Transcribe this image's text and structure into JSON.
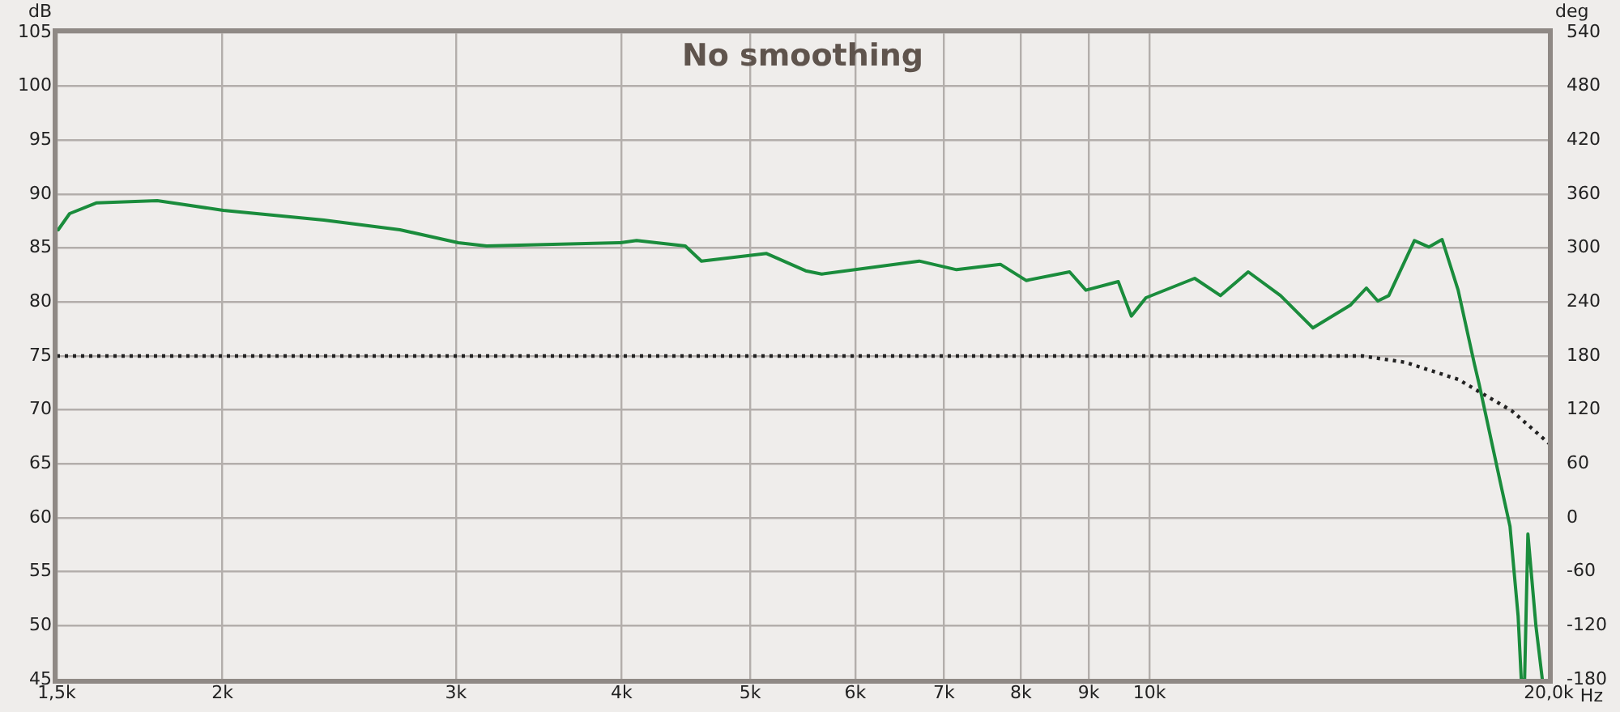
{
  "chart_data": {
    "type": "line",
    "title": "No smoothing",
    "xlabel": "Hz",
    "ylabel": "dB",
    "y2label": "deg",
    "log": "x",
    "grid": true,
    "marker": "none",
    "xlim": [
      1500,
      20000
    ],
    "xticks": [
      {
        "value": 1500,
        "label": "1,5k"
      },
      {
        "value": 2000,
        "label": "2k"
      },
      {
        "value": 3000,
        "label": "3k"
      },
      {
        "value": 4000,
        "label": "4k"
      },
      {
        "value": 5000,
        "label": "5k"
      },
      {
        "value": 6000,
        "label": "6k"
      },
      {
        "value": 7000,
        "label": "7k"
      },
      {
        "value": 8000,
        "label": "8k"
      },
      {
        "value": 9000,
        "label": "9k"
      },
      {
        "value": 10000,
        "label": "10k"
      },
      {
        "value": 20000,
        "label": "20,0k"
      }
    ],
    "ylim": [
      45,
      105
    ],
    "yticks": [
      45,
      50,
      55,
      60,
      65,
      70,
      75,
      80,
      85,
      90,
      95,
      100,
      105
    ],
    "y2lim": [
      -180,
      540
    ],
    "y2ticks": [
      -180,
      -120,
      -60,
      0,
      60,
      120,
      180,
      240,
      300,
      360,
      420,
      480,
      540
    ],
    "series": [
      {
        "color": "#1a8c3c",
        "line_style": "solid",
        "x": [
          1504,
          1534,
          1608,
          1786,
          2003,
          2385,
          2722,
          3012,
          3164,
          3992,
          4105,
          4467,
          4594,
          5144,
          5505,
          5661,
          6705,
          7154,
          7719,
          8073,
          8705,
          8955,
          9473,
          9690,
          9939,
          10515,
          10816,
          11313,
          11870,
          12556,
          13282,
          14170,
          14573,
          14864,
          15150,
          15840,
          16246,
          16620,
          17090,
          17576,
          17724,
          18440,
          18700,
          18965,
          19070,
          19180,
          19290,
          19560,
          19780
        ],
        "values": [
          86.7,
          88.2,
          89.2,
          89.4,
          88.5,
          87.6,
          86.7,
          85.5,
          85.2,
          85.5,
          85.7,
          85.2,
          83.8,
          84.5,
          82.9,
          82.6,
          83.8,
          83.0,
          83.5,
          82.0,
          82.8,
          81.1,
          81.9,
          78.7,
          80.4,
          81.6,
          82.2,
          80.6,
          82.8,
          80.6,
          77.6,
          79.7,
          81.3,
          80.1,
          80.6,
          85.7,
          85.1,
          85.8,
          81.1,
          74.3,
          72.4,
          62.6,
          59.2,
          50.9,
          45,
          45,
          58.5,
          50,
          45
        ]
      },
      {
        "color": "#222222",
        "axis": "y2",
        "line_style": "dotted",
        "x": [
          1500,
          10000,
          12840,
          14474,
          15590,
          17090,
          18760,
          20000
        ],
        "values": [
          180,
          180,
          180,
          180,
          173,
          154,
          119,
          83
        ]
      }
    ]
  }
}
